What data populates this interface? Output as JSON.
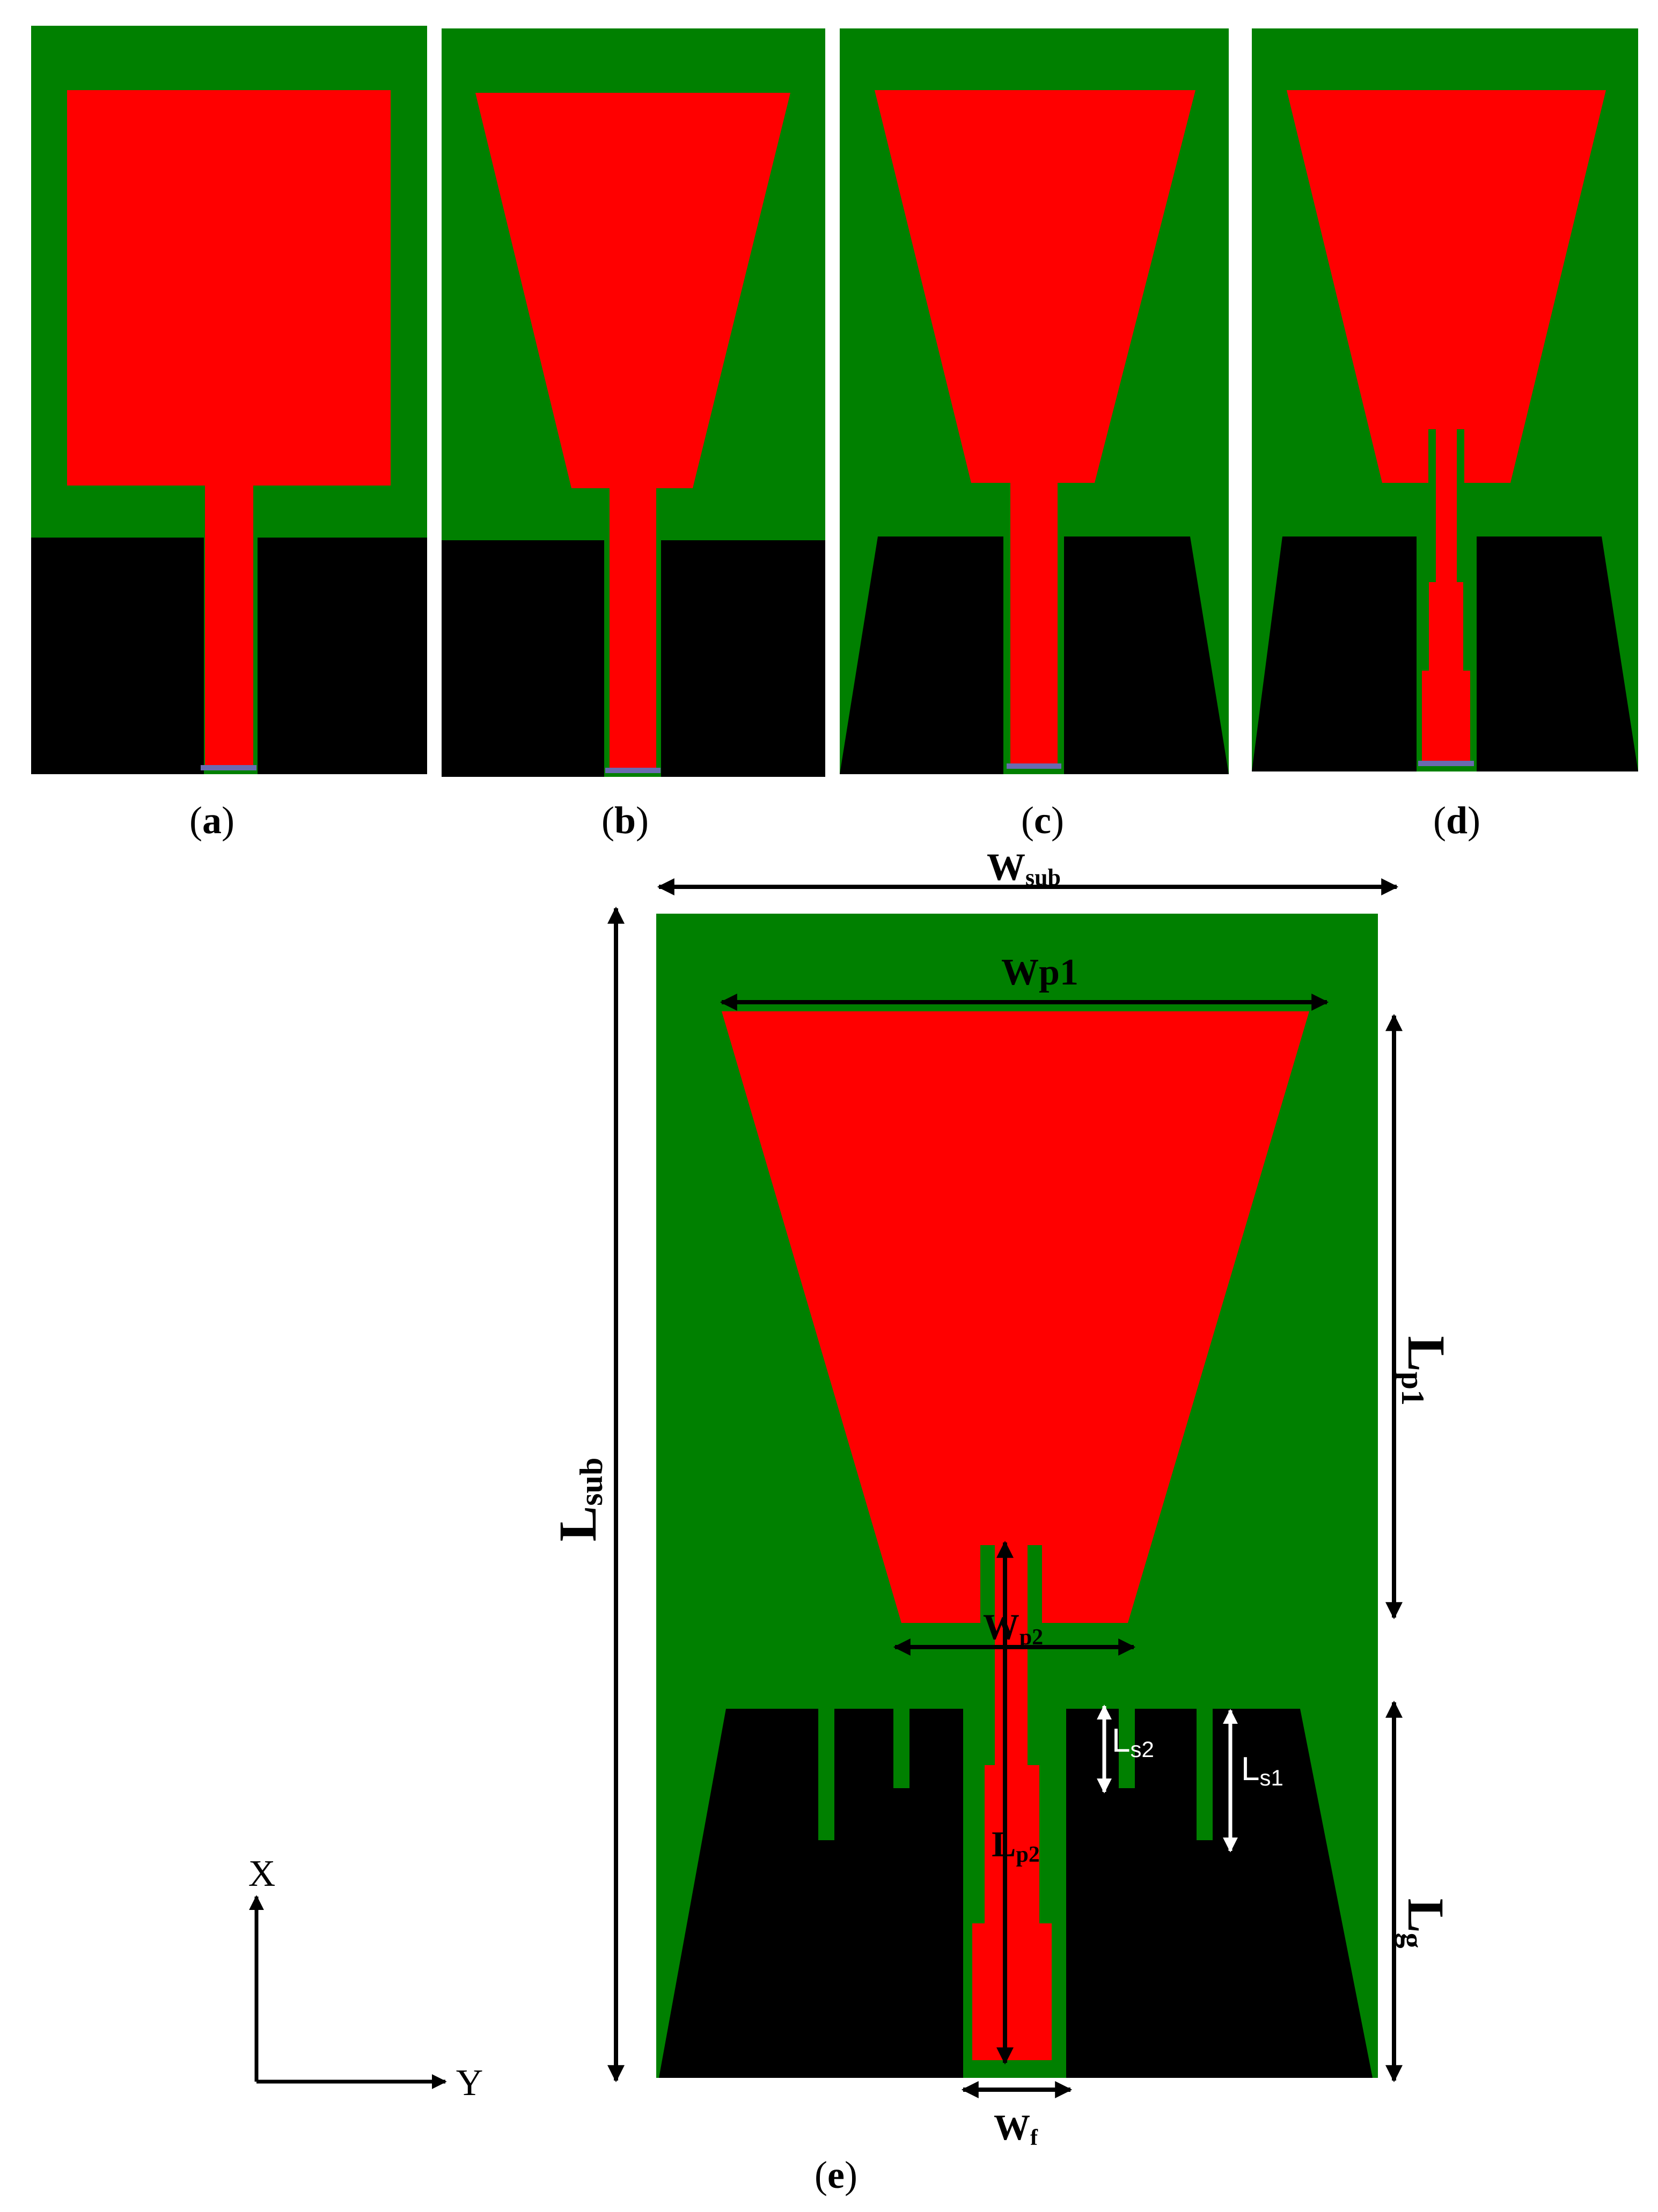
{
  "colors": {
    "substrate": "#008000",
    "patch": "#ff0000",
    "ground": "#000000",
    "port": "#6a6ab0",
    "arrow": "#000000",
    "arrow_light": "#ffffff"
  },
  "captions": {
    "a_open": "(",
    "a_letter": "a",
    "a_close": ")",
    "b_open": "(",
    "b_letter": "b",
    "b_close": ")",
    "c_open": "(",
    "c_letter": "c",
    "c_close": ")",
    "d_open": "(",
    "d_letter": "d",
    "d_close": ")",
    "e_open": "(",
    "e_letter": "e",
    "e_close": ")"
  },
  "dimensions": {
    "wsub": {
      "main": "W",
      "sub": "sub"
    },
    "wp1": {
      "main": "Wp1",
      "sub": ""
    },
    "lsub": {
      "main": "L",
      "sub": "sub"
    },
    "lp1": {
      "main": "L",
      "sub": "p1"
    },
    "wp2": {
      "main": "W",
      "sub": "p2"
    },
    "lp2": {
      "main": "L",
      "sub": "p2"
    },
    "ls2": {
      "main": "L",
      "sub": "s2"
    },
    "ls1": {
      "main": "L",
      "sub": "s1"
    },
    "lg": {
      "main": "L",
      "sub": "g"
    },
    "wf": {
      "main": "W",
      "sub": "f"
    }
  },
  "axes": {
    "x_label": "X",
    "y_label": "Y"
  }
}
